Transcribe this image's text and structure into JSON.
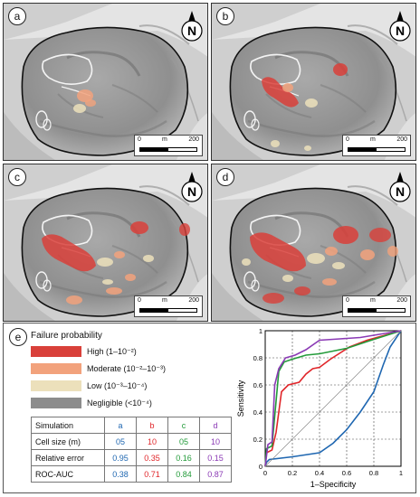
{
  "panels": [
    {
      "label": "a"
    },
    {
      "label": "b"
    },
    {
      "label": "c"
    },
    {
      "label": "d"
    }
  ],
  "north_symbol": "N",
  "scale_bar": {
    "start": "0",
    "unit": "m",
    "end": "200"
  },
  "bottom_label": "e",
  "legend": {
    "title": "Failure probability",
    "items": [
      {
        "label": "High (1–10⁻²)",
        "color": "#d9403a"
      },
      {
        "label": "Moderate (10⁻²–10⁻³)",
        "color": "#f2a27c"
      },
      {
        "label": "Low (10⁻³–10⁻⁴)",
        "color": "#ece0bb"
      },
      {
        "label": "Negligible (<10⁻⁴)",
        "color": "#8c8c8c"
      }
    ]
  },
  "table": {
    "headers": [
      "Simulation",
      "a",
      "b",
      "c",
      "d"
    ],
    "series_colors": [
      "#1f67b1",
      "#e0262a",
      "#239b3a",
      "#8b3ab5"
    ],
    "rows": [
      {
        "label": "Cell size (m)",
        "values": [
          "05",
          "10",
          "05",
          "10"
        ]
      },
      {
        "label": "Relative error",
        "values": [
          "0.95",
          "0.35",
          "0.16",
          "0.15"
        ]
      },
      {
        "label": "ROC-AUC",
        "values": [
          "0.38",
          "0.71",
          "0.84",
          "0.87"
        ]
      }
    ]
  },
  "chart_data": {
    "type": "line",
    "xlabel": "1–Specificity",
    "ylabel": "Sensitivity",
    "xlim": [
      0,
      1
    ],
    "ylim": [
      0,
      1
    ],
    "xticks": [
      "0",
      "0.2",
      "0.4",
      "0.6",
      "0.8",
      "1"
    ],
    "yticks": [
      "0",
      "0.2",
      "0.4",
      "0.6",
      "0.8",
      "1"
    ],
    "grid": true,
    "series": [
      {
        "color": "#1f67b1",
        "points": [
          [
            0,
            0
          ],
          [
            0.01,
            0.03
          ],
          [
            0.03,
            0.05
          ],
          [
            0.2,
            0.07
          ],
          [
            0.4,
            0.1
          ],
          [
            0.5,
            0.17
          ],
          [
            0.6,
            0.27
          ],
          [
            0.7,
            0.4
          ],
          [
            0.8,
            0.55
          ],
          [
            0.87,
            0.75
          ],
          [
            0.92,
            0.88
          ],
          [
            1,
            1
          ]
        ]
      },
      {
        "color": "#e0262a",
        "points": [
          [
            0,
            0
          ],
          [
            0.01,
            0.1
          ],
          [
            0.05,
            0.12
          ],
          [
            0.08,
            0.25
          ],
          [
            0.12,
            0.55
          ],
          [
            0.17,
            0.6
          ],
          [
            0.25,
            0.62
          ],
          [
            0.3,
            0.68
          ],
          [
            0.35,
            0.72
          ],
          [
            0.4,
            0.73
          ],
          [
            0.48,
            0.79
          ],
          [
            0.62,
            0.88
          ],
          [
            0.75,
            0.93
          ],
          [
            1,
            1
          ]
        ]
      },
      {
        "color": "#239b3a",
        "points": [
          [
            0,
            0
          ],
          [
            0.01,
            0.13
          ],
          [
            0.05,
            0.15
          ],
          [
            0.08,
            0.48
          ],
          [
            0.1,
            0.7
          ],
          [
            0.14,
            0.77
          ],
          [
            0.2,
            0.79
          ],
          [
            0.3,
            0.82
          ],
          [
            0.4,
            0.83
          ],
          [
            0.5,
            0.85
          ],
          [
            0.6,
            0.87
          ],
          [
            0.75,
            0.92
          ],
          [
            1,
            1
          ]
        ]
      },
      {
        "color": "#8b3ab5",
        "points": [
          [
            0,
            0
          ],
          [
            0.02,
            0.16
          ],
          [
            0.05,
            0.18
          ],
          [
            0.07,
            0.6
          ],
          [
            0.1,
            0.72
          ],
          [
            0.15,
            0.8
          ],
          [
            0.22,
            0.82
          ],
          [
            0.3,
            0.86
          ],
          [
            0.4,
            0.93
          ],
          [
            0.55,
            0.94
          ],
          [
            0.7,
            0.95
          ],
          [
            1,
            1
          ]
        ]
      },
      {
        "color": "#888888",
        "points": [
          [
            0,
            0
          ],
          [
            1,
            1
          ]
        ]
      }
    ]
  }
}
